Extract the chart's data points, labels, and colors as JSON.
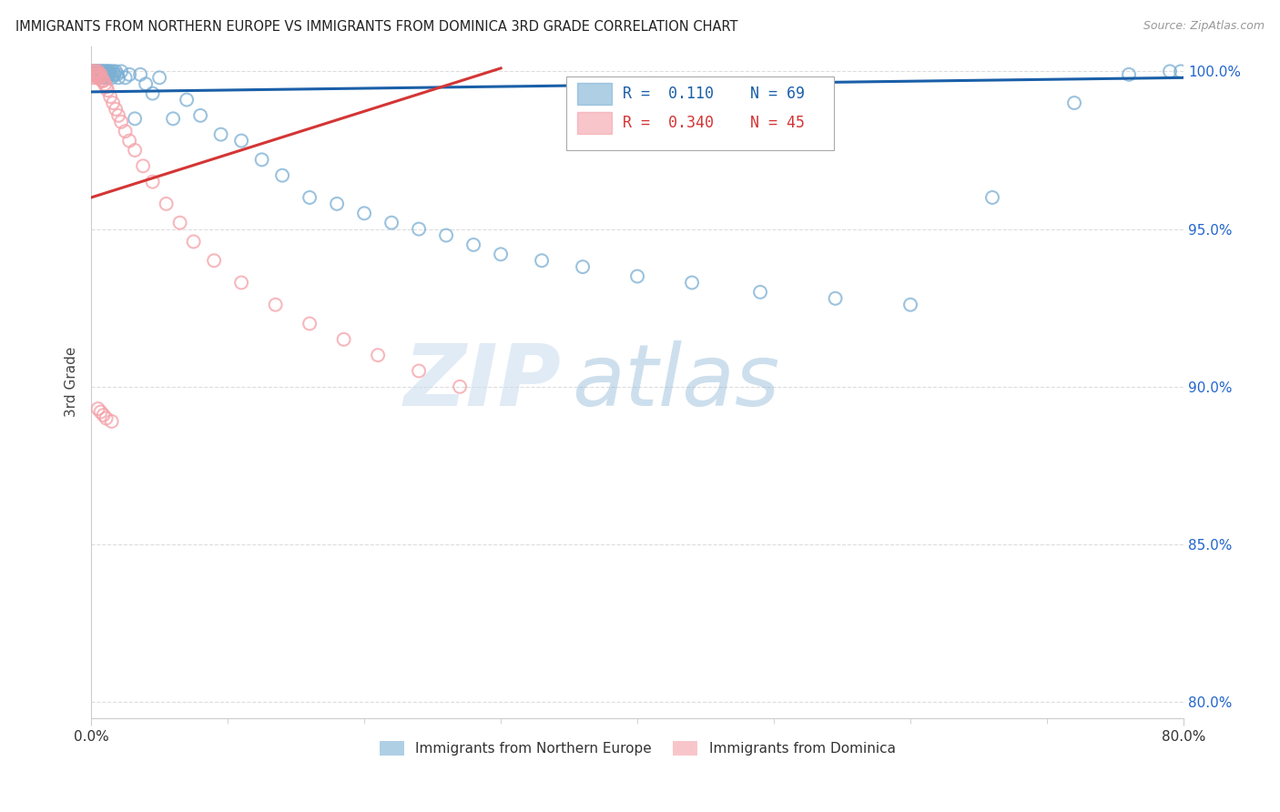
{
  "title": "IMMIGRANTS FROM NORTHERN EUROPE VS IMMIGRANTS FROM DOMINICA 3RD GRADE CORRELATION CHART",
  "source": "Source: ZipAtlas.com",
  "ylabel": "3rd Grade",
  "x_min": 0.0,
  "x_max": 0.8,
  "y_min": 0.795,
  "y_max": 1.008,
  "blue_color": "#7BAFD4",
  "pink_color": "#F4A0A8",
  "line_blue": "#1A5FA8",
  "line_pink": "#D43535",
  "R_blue": 0.11,
  "N_blue": 69,
  "R_pink": 0.34,
  "N_pink": 45,
  "blue_scatter_x": [
    0.001,
    0.002,
    0.002,
    0.003,
    0.003,
    0.004,
    0.004,
    0.005,
    0.005,
    0.006,
    0.006,
    0.006,
    0.007,
    0.007,
    0.008,
    0.008,
    0.009,
    0.009,
    0.01,
    0.01,
    0.011,
    0.011,
    0.012,
    0.012,
    0.013,
    0.013,
    0.014,
    0.015,
    0.015,
    0.016,
    0.017,
    0.018,
    0.019,
    0.02,
    0.022,
    0.025,
    0.028,
    0.032,
    0.036,
    0.04,
    0.045,
    0.05,
    0.06,
    0.07,
    0.08,
    0.095,
    0.11,
    0.125,
    0.14,
    0.16,
    0.18,
    0.2,
    0.22,
    0.24,
    0.26,
    0.28,
    0.3,
    0.33,
    0.36,
    0.4,
    0.44,
    0.49,
    0.545,
    0.6,
    0.66,
    0.72,
    0.76,
    0.79,
    0.798
  ],
  "blue_scatter_y": [
    1.0,
    1.0,
    0.999,
    1.0,
    0.999,
    1.0,
    0.999,
    1.0,
    0.999,
    1.0,
    0.999,
    0.998,
    1.0,
    0.999,
    1.0,
    0.999,
    1.0,
    0.998,
    1.0,
    0.999,
    1.0,
    0.999,
    1.0,
    0.998,
    1.0,
    0.999,
    1.0,
    0.999,
    0.998,
    1.0,
    0.999,
    1.0,
    0.999,
    0.998,
    1.0,
    0.998,
    0.999,
    0.985,
    0.999,
    0.996,
    0.993,
    0.998,
    0.985,
    0.991,
    0.986,
    0.98,
    0.978,
    0.972,
    0.967,
    0.96,
    0.958,
    0.955,
    0.952,
    0.95,
    0.948,
    0.945,
    0.942,
    0.94,
    0.938,
    0.935,
    0.933,
    0.93,
    0.928,
    0.926,
    0.96,
    0.99,
    0.999,
    1.0,
    1.0
  ],
  "pink_scatter_x": [
    0.001,
    0.001,
    0.002,
    0.002,
    0.003,
    0.003,
    0.004,
    0.004,
    0.005,
    0.005,
    0.006,
    0.006,
    0.007,
    0.007,
    0.008,
    0.009,
    0.01,
    0.011,
    0.012,
    0.014,
    0.016,
    0.018,
    0.02,
    0.022,
    0.025,
    0.028,
    0.032,
    0.038,
    0.045,
    0.055,
    0.065,
    0.075,
    0.09,
    0.11,
    0.135,
    0.16,
    0.185,
    0.21,
    0.24,
    0.27,
    0.005,
    0.007,
    0.009,
    0.011,
    0.015
  ],
  "pink_scatter_y": [
    0.998,
    1.0,
    0.999,
    1.0,
    0.999,
    1.0,
    0.999,
    0.998,
    1.0,
    0.999,
    0.999,
    0.998,
    0.999,
    0.998,
    0.997,
    0.997,
    0.996,
    0.995,
    0.994,
    0.992,
    0.99,
    0.988,
    0.986,
    0.984,
    0.981,
    0.978,
    0.975,
    0.97,
    0.965,
    0.958,
    0.952,
    0.946,
    0.94,
    0.933,
    0.926,
    0.92,
    0.915,
    0.91,
    0.905,
    0.9,
    0.893,
    0.892,
    0.891,
    0.89,
    0.889
  ],
  "blue_line_x": [
    0.0,
    0.8
  ],
  "blue_line_y": [
    0.9935,
    0.998
  ],
  "pink_line_x": [
    0.0,
    0.3
  ],
  "pink_line_y": [
    0.96,
    1.001
  ],
  "watermark_zip": "ZIP",
  "watermark_atlas": "atlas",
  "legend_R_blue_text": "R =  0.110    N = 69",
  "legend_R_pink_text": "R =  0.340    N = 45",
  "legend_blue_label": "Immigrants from Northern Europe",
  "legend_pink_label": "Immigrants from Dominica",
  "background_color": "#FFFFFF",
  "grid_color": "#DDDDDD",
  "tick_color_y": "#2266CC",
  "tick_color_x": "#333333",
  "spine_color": "#CCCCCC"
}
